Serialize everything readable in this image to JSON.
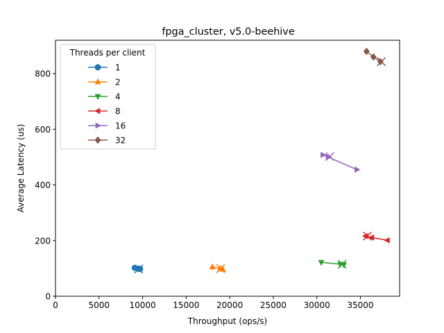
{
  "chart_data": {
    "type": "scatter",
    "title": "fpga_cluster, v5.0-beehive",
    "xlabel": "Throughput (ops/s)",
    "ylabel": "Average Latency (us)",
    "xlim": [
      0,
      39500
    ],
    "ylim": [
      0,
      920
    ],
    "xticks": [
      0,
      5000,
      10000,
      15000,
      20000,
      25000,
      30000,
      35000
    ],
    "yticks": [
      0,
      200,
      400,
      600,
      800
    ],
    "grid": false,
    "legend": {
      "title": "Threads per client",
      "placement": "top-left"
    },
    "series": [
      {
        "name": "1",
        "color": "#1f77b4",
        "marker": "circle",
        "x": [
          9100,
          9500,
          9700
        ],
        "y": [
          102,
          99,
          98
        ],
        "cross": [
          9550,
          98
        ]
      },
      {
        "name": "2",
        "color": "#ff7f0e",
        "marker": "triangle-up",
        "x": [
          18000,
          18900,
          19200
        ],
        "y": [
          105,
          100,
          97
        ],
        "cross": [
          18950,
          99
        ]
      },
      {
        "name": "4",
        "color": "#2ca02c",
        "marker": "triangle-down",
        "x": [
          30500,
          32700,
          33100
        ],
        "y": [
          122,
          115,
          113
        ],
        "cross": [
          32900,
          115
        ]
      },
      {
        "name": "8",
        "color": "#d62728",
        "marker": "triangle-left",
        "x": [
          35600,
          36300,
          38100
        ],
        "y": [
          216,
          211,
          201
        ],
        "cross": [
          35800,
          216
        ]
      },
      {
        "name": "16",
        "color": "#9467bd",
        "marker": "triangle-right",
        "x": [
          30700,
          31300,
          34600
        ],
        "y": [
          508,
          500,
          455
        ],
        "cross": [
          31500,
          502
        ]
      },
      {
        "name": "32",
        "color": "#8c564b",
        "marker": "diamond",
        "x": [
          35700,
          36500,
          37300
        ],
        "y": [
          880,
          860,
          843
        ],
        "cross": [
          37400,
          843
        ]
      }
    ]
  }
}
